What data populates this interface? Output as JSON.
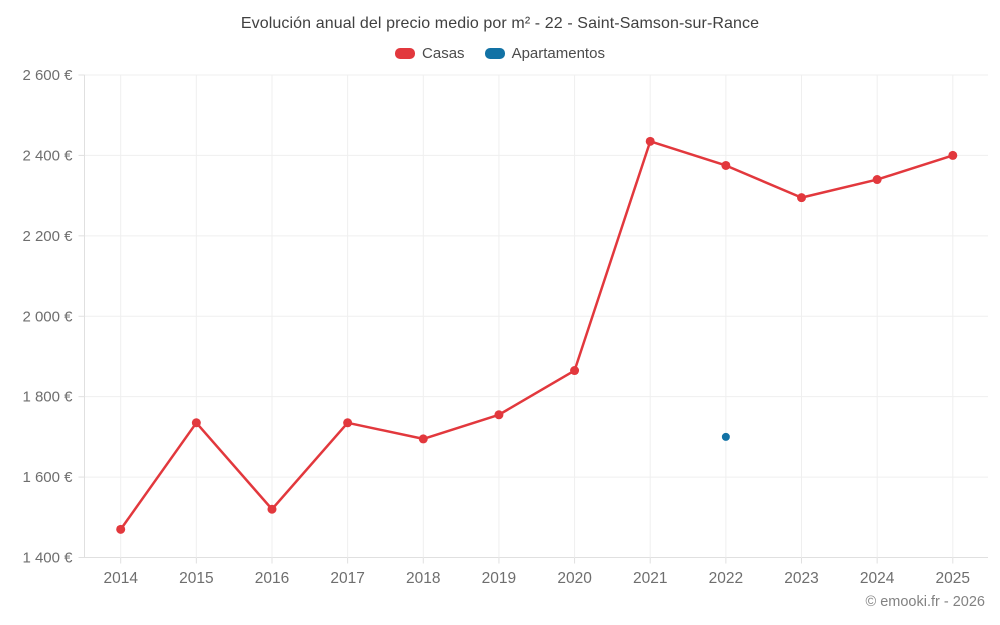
{
  "title": "Evolución anual del precio medio por m² - 22 - Saint-Samson-sur-Rance",
  "legend": [
    {
      "label": "Casas",
      "color": "#e2383d"
    },
    {
      "label": "Apartamentos",
      "color": "#1272a5"
    }
  ],
  "footer": "© emooki.fr - 2026",
  "colors": {
    "title_text": "#404040",
    "tick_text": "#6e6e6e",
    "grid_line": "#efefef",
    "axis_line": "#e0e0e0",
    "background": "#ffffff",
    "casas_red": "#e2383d",
    "apartamentos_blue": "#1272a5"
  },
  "chart_data": {
    "type": "line",
    "title": "Evolución anual del precio medio por m² - 22 - Saint-Samson-sur-Rance",
    "x": [
      "2014",
      "2015",
      "2016",
      "2017",
      "2018",
      "2019",
      "2020",
      "2021",
      "2022",
      "2023",
      "2024",
      "2025"
    ],
    "series": [
      {
        "name": "Casas",
        "color": "#e2383d",
        "marker_radius": 4.5,
        "values": [
          1470,
          1735,
          1520,
          1735,
          1695,
          1755,
          1865,
          2435,
          2375,
          2295,
          2340,
          2400
        ]
      },
      {
        "name": "Apartamentos",
        "color": "#1272a5",
        "marker_radius": 4,
        "values": [
          null,
          null,
          null,
          null,
          null,
          null,
          null,
          null,
          1700,
          null,
          null,
          null
        ]
      }
    ],
    "ylim": [
      1400,
      2600
    ],
    "ytick_step": 200,
    "ytick_suffix": "€",
    "xlabel": "",
    "ylabel": "",
    "grid": true,
    "legend_position": "top",
    "annotations": []
  }
}
